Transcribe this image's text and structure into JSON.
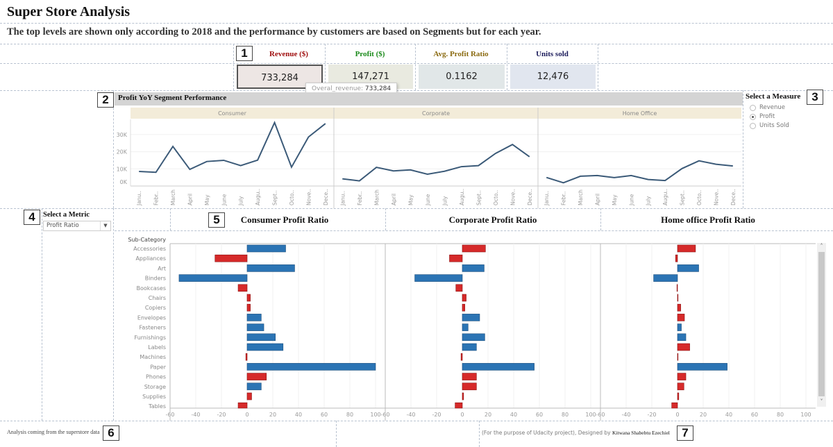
{
  "title": "Super Store Analysis",
  "subtitle": "The top levels are shown only according to 2018 and the performance by customers are based on Segments but for each year.",
  "markers": [
    "1",
    "2",
    "3",
    "4",
    "5",
    "6",
    "7"
  ],
  "kpis": [
    {
      "label": "Revenue ($)",
      "value": "733,284",
      "label_color": "#a01010",
      "bg": "#ede6e4"
    },
    {
      "label": "Profit ($)",
      "value": "147,271",
      "label_color": "#1a8a1a",
      "bg": "#e9eae0"
    },
    {
      "label": "Avg. Profit Ratio",
      "value": "0.1162",
      "label_color": "#8a6a10",
      "bg": "#e1e7e8"
    },
    {
      "label": "Units sold",
      "value": "12,476",
      "label_color": "#1a1a5a",
      "bg": "#e1e6ef"
    }
  ],
  "tooltip": {
    "label": "Overal_revenue:",
    "value": "733,284"
  },
  "measure_selector": {
    "title": "Select a Measure",
    "options": [
      {
        "label": "Revenue",
        "selected": false
      },
      {
        "label": "Profit",
        "selected": true
      },
      {
        "label": "Units Sold",
        "selected": false
      }
    ]
  },
  "metric_selector": {
    "title": "Select a Metric",
    "value": "Profit Ratio"
  },
  "footer": {
    "left": "Analysis coming from the superstore data",
    "right_prefix": "(For the purpose of Udacity project), Designed by",
    "right_author": "Kitwana Shabebtu Ezechiel"
  },
  "chart_data": [
    {
      "type": "line",
      "title": "Profit YoY Segment Performance",
      "categories": [
        "Janu..",
        "Febr..",
        "March",
        "April",
        "May",
        "June",
        "July",
        "Augu..",
        "Sept..",
        "Octo..",
        "Nove..",
        "Dece.."
      ],
      "yticks": [
        "0K",
        "10K",
        "20K",
        "30K"
      ],
      "ylim": [
        0,
        40000
      ],
      "line_color": "#3b5a78",
      "grid": true,
      "series": [
        {
          "name": "Consumer",
          "values": [
            8500,
            8000,
            23100,
            9700,
            14300,
            15000,
            11900,
            15100,
            37000,
            11000,
            28600,
            36400
          ]
        },
        {
          "name": "Corporate",
          "values": [
            4200,
            3000,
            10900,
            8800,
            9400,
            6900,
            8600,
            11300,
            11900,
            19000,
            24200,
            17100
          ]
        },
        {
          "name": "Home Office",
          "values": [
            5000,
            1900,
            5700,
            6100,
            4900,
            6100,
            3800,
            3200,
            10200,
            14700,
            12700,
            11700
          ]
        }
      ]
    },
    {
      "type": "bar",
      "orientation": "horizontal",
      "row_header": "Sub-Category",
      "categories": [
        "Accessories",
        "Appliances",
        "Art",
        "Binders",
        "Bookcases",
        "Chairs",
        "Copiers",
        "Envelopes",
        "Fasteners",
        "Furnishings",
        "Labels",
        "Machines",
        "Paper",
        "Phones",
        "Storage",
        "Supplies",
        "Tables"
      ],
      "xticks": [
        -60,
        -40,
        -20,
        0,
        20,
        40,
        60,
        80,
        100
      ],
      "xlim": [
        -60,
        107
      ],
      "colors": {
        "blue": "#2b74b4",
        "red": "#d62a2a"
      },
      "series": [
        {
          "name": "Consumer Profit Ratio",
          "values": [
            30,
            -25,
            37,
            -53,
            -7,
            2.5,
            2.5,
            11,
            13,
            22,
            28,
            -1,
            100,
            15,
            11,
            3.5,
            -7
          ],
          "colors": [
            "blue",
            "red",
            "blue",
            "blue",
            "red",
            "red",
            "red",
            "blue",
            "blue",
            "blue",
            "blue",
            "red",
            "blue",
            "red",
            "blue",
            "red",
            "red"
          ]
        },
        {
          "name": "Corporate Profit Ratio",
          "values": [
            18,
            -10,
            17,
            -37,
            -5,
            3,
            2,
            13.5,
            4.5,
            17.5,
            11,
            -1,
            56,
            11,
            11,
            1,
            -5.6
          ],
          "colors": [
            "red",
            "red",
            "blue",
            "blue",
            "red",
            "red",
            "red",
            "blue",
            "blue",
            "blue",
            "blue",
            "red",
            "blue",
            "red",
            "red",
            "red",
            "red"
          ]
        },
        {
          "name": "Home office Profit Ratio",
          "values": [
            14,
            -1.5,
            16.5,
            -18.6,
            -0.3,
            0.3,
            2.5,
            5.4,
            3,
            6.5,
            9.5,
            0,
            38.7,
            6.5,
            5,
            1,
            -4.5
          ],
          "colors": [
            "red",
            "red",
            "blue",
            "blue",
            "red",
            "red",
            "red",
            "red",
            "blue",
            "blue",
            "red",
            "red",
            "blue",
            "red",
            "red",
            "red",
            "red"
          ]
        }
      ]
    }
  ]
}
